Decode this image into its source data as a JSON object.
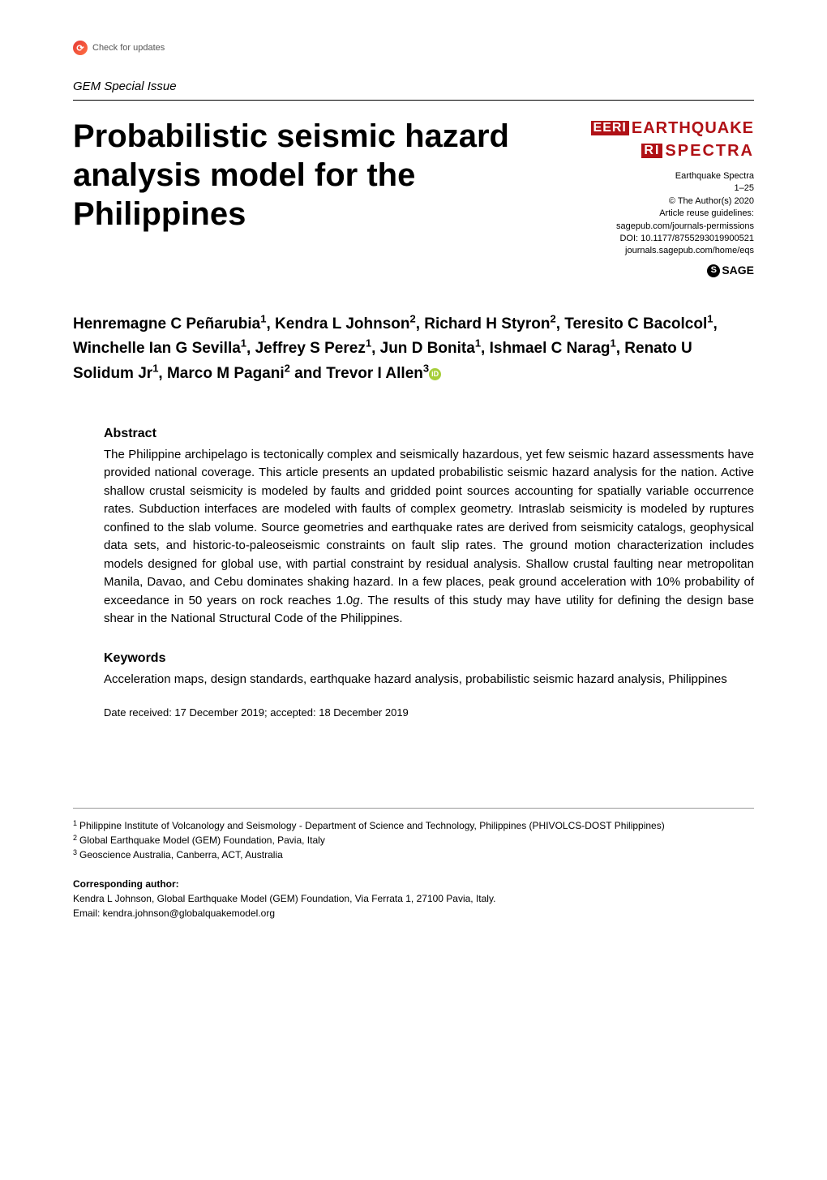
{
  "header": {
    "check_updates_label": "Check for updates",
    "issue_label": "GEM Special Issue"
  },
  "logo": {
    "box1": "EERI",
    "line1": "EARTHQUAKE",
    "box2": "RI",
    "line2": "SPECTRA"
  },
  "journal_meta": {
    "journal_name": "Earthquake Spectra",
    "pages": "1–25",
    "copyright": "© The Author(s) 2020",
    "reuse_label": "Article reuse guidelines:",
    "reuse_link": "sagepub.com/journals-permissions",
    "doi": "DOI: 10.1177/8755293019900521",
    "home_link": "journals.sagepub.com/home/eqs",
    "publisher": "SAGE"
  },
  "title": "Probabilistic seismic hazard analysis model for the Philippines",
  "authors_html": "Henremagne C Peñarubia<sup>1</sup>, Kendra L Johnson<sup>2</sup>, Richard H Styron<sup>2</sup>, Teresito C Bacolcol<sup>1</sup>, Winchelle Ian G Sevilla<sup>1</sup>, Jeffrey S Perez<sup>1</sup>, Jun D Bonita<sup>1</sup>, Ishmael C Narag<sup>1</sup>, Renato U Solidum Jr<sup>1</sup>, Marco M Pagani<sup>2</sup> and Trevor I Allen<sup>3</sup>",
  "abstract": {
    "heading": "Abstract",
    "text": "The Philippine archipelago is tectonically complex and seismically hazardous, yet few seismic hazard assessments have provided national coverage. This article presents an updated probabilistic seismic hazard analysis for the nation. Active shallow crustal seismicity is modeled by faults and gridded point sources accounting for spatially variable occurrence rates. Subduction interfaces are modeled with faults of complex geometry. Intraslab seismicity is modeled by ruptures confined to the slab volume. Source geometries and earthquake rates are derived from seismicity catalogs, geophysical data sets, and historic-to-paleoseismic constraints on fault slip rates. The ground motion characterization includes models designed for global use, with partial constraint by residual analysis. Shallow crustal faulting near metropolitan Manila, Davao, and Cebu dominates shaking hazard. In a few places, peak ground acceleration with 10% probability of exceedance in 50 years on rock reaches 1.0g. The results of this study may have utility for defining the design base shear in the National Structural Code of the Philippines."
  },
  "keywords": {
    "heading": "Keywords",
    "text": "Acceleration maps, design standards, earthquake hazard analysis, probabilistic seismic hazard analysis, Philippines"
  },
  "dates": "Date received: 17 December 2019; accepted: 18 December 2019",
  "affiliations": {
    "a1": "Philippine Institute of Volcanology and Seismology - Department of Science and Technology, Philippines (PHIVOLCS-DOST Philippines)",
    "a2": "Global Earthquake Model (GEM) Foundation, Pavia, Italy",
    "a3": "Geoscience Australia, Canberra, ACT, Australia"
  },
  "corresponding": {
    "label": "Corresponding author:",
    "text": "Kendra L Johnson, Global Earthquake Model (GEM) Foundation, Via Ferrata 1, 27100 Pavia, Italy.",
    "email": "Email: kendra.johnson@globalquakemodel.org"
  },
  "colors": {
    "brand_red": "#b01116",
    "orcid_green": "#a6ce39",
    "text": "#000000",
    "background": "#ffffff",
    "rule": "#000000",
    "bottom_rule": "#999999"
  },
  "typography": {
    "title_fontsize": 40,
    "author_fontsize": 19,
    "body_fontsize": 15,
    "meta_fontsize": 11,
    "footer_fontsize": 12
  }
}
